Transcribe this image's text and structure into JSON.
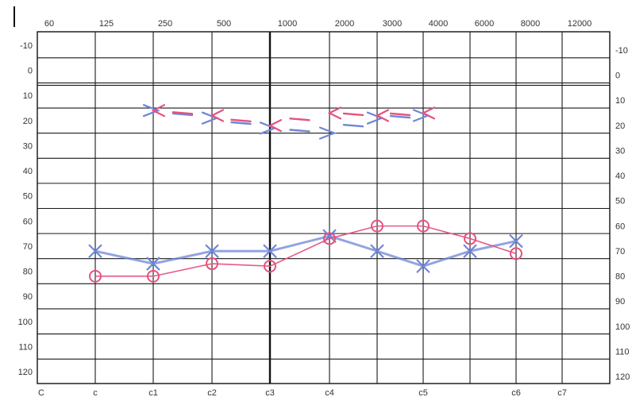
{
  "chart_data": {
    "type": "line",
    "title": "",
    "xlabel": "",
    "ylabel": "",
    "x_scale": "log",
    "y_inverted": true,
    "ylim": [
      -15,
      125
    ],
    "grid": true,
    "frequency_ticks": [
      "60",
      "125",
      "250",
      "500",
      "1000",
      "2000",
      "3000",
      "4000",
      "6000",
      "8000",
      "12000"
    ],
    "level_ticks": [
      "-10",
      "0",
      "10",
      "20",
      "30",
      "40",
      "50",
      "60",
      "70",
      "80",
      "90",
      "100",
      "110",
      "120"
    ],
    "level_ticks_right": [
      "-10",
      "0",
      "10",
      "20",
      "30",
      "40",
      "50",
      "60",
      "70",
      "80",
      "90",
      "100",
      "110",
      "120"
    ],
    "note_labels": [
      {
        "text": "C",
        "freq": 60
      },
      {
        "text": "c",
        "freq": 125
      },
      {
        "text": "c1",
        "freq": 250
      },
      {
        "text": "c2",
        "freq": 500
      },
      {
        "text": "c3",
        "freq": 1000
      },
      {
        "text": "c4",
        "freq": 2000
      },
      {
        "text": "c5",
        "freq": 4000
      },
      {
        "text": "c6",
        "freq": 8000
      },
      {
        "text": "c7",
        "freq": 12000
      }
    ],
    "series": [
      {
        "marker": "x",
        "style": "solid",
        "color": "#6f86d6",
        "x": [
          125,
          250,
          500,
          1000,
          2000,
          3000,
          4000,
          6000,
          8000
        ],
        "y": [
          72,
          77,
          72,
          72,
          66,
          72,
          78,
          72,
          68
        ]
      },
      {
        "marker": "o",
        "style": "solid",
        "color": "#e5527f",
        "x": [
          125,
          250,
          500,
          1000,
          2000,
          3000,
          4000,
          6000,
          8000
        ],
        "y": [
          82,
          82,
          77,
          78,
          67,
          62,
          62,
          67,
          73
        ]
      },
      {
        "marker": ">",
        "style": "dashed",
        "color": "#6f86d6",
        "x": [
          250,
          500,
          1000,
          2000,
          3000,
          4000
        ],
        "y": [
          16,
          19,
          23,
          25,
          19,
          18
        ]
      },
      {
        "marker": "<",
        "style": "dashed",
        "color": "#e5527f",
        "x": [
          250,
          500,
          1000,
          2000,
          3000,
          4000
        ],
        "y": [
          16,
          18,
          22,
          17,
          18,
          17
        ]
      }
    ]
  }
}
